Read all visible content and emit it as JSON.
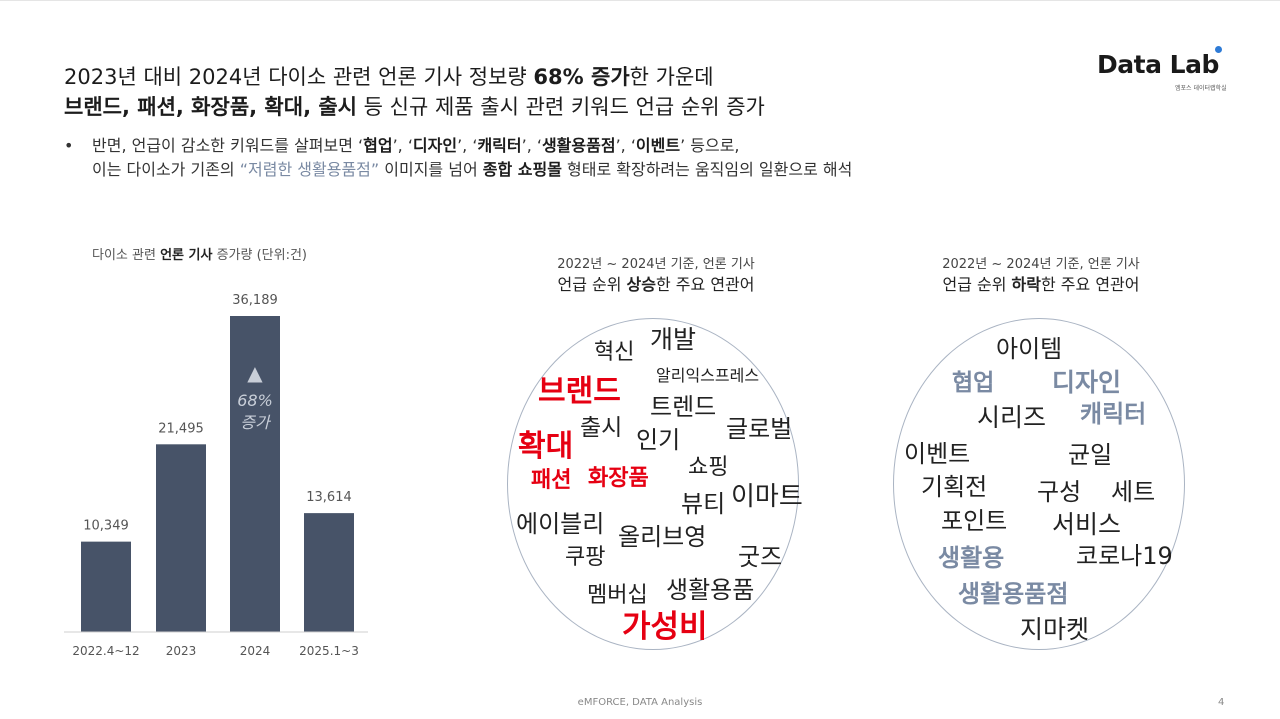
{
  "headline": {
    "line1_pre": "2023년 대비 2024년 다이소 관련 언론 기사 정보량 ",
    "line1_bold": "68% 증가",
    "line1_post": "한 가운데",
    "line2_bold": "브랜드, 패션, 화장품, 확대, 출시",
    "line2_post": " 등 신규 제품 출시 관련 키워드 언급 순위 증가"
  },
  "logo": {
    "text": "Data Lab",
    "sub": "엠포스 데이터랩학실"
  },
  "bullet": {
    "marker": "•",
    "l1_a": "반면, 언급이 감소한 키워드를 살펴보면 ‘",
    "k1": "협업",
    "s1": "’, ‘",
    "k2": "디자인",
    "s2": "’, ‘",
    "k3": "캐릭터",
    "s3": "’, ‘",
    "k4": "생활용품점",
    "s4": "’, ‘",
    "k5": "이벤트",
    "l1_end": "’ 등으로,",
    "l2_a": "이는 다이소가 기존의 ",
    "l2_quote": "“저렴한 생활용품점”",
    "l2_b": " 이미지를 넘어 ",
    "l2_bold": "종합 쇼핑몰",
    "l2_c": " 형태로 확장하려는 움직임의 일환으로 해석"
  },
  "chart_title": {
    "pre": "다이소 관련 ",
    "bold": "언론 기사",
    "post": " 증가량 (단위:건)"
  },
  "chart_data": {
    "type": "bar",
    "title": "다이소 관련 언론 기사 증가량 (단위:건)",
    "categories": [
      "2022.4~12",
      "2023",
      "2024",
      "2025.1~3"
    ],
    "values": [
      10349,
      21495,
      36189,
      13614
    ],
    "value_labels": [
      "10,349",
      "21,495",
      "36,189",
      "13,614"
    ],
    "annotation": {
      "category": "2024",
      "marker": "▲",
      "line1": "68%",
      "line2": "증가"
    },
    "ylim": [
      0,
      36189
    ],
    "bar_color": "#475368",
    "grid": false
  },
  "cloud_rising": {
    "title_line1": "2022년 ~ 2024년 기준, 언론 기사",
    "title_pre": "언급 순위 ",
    "title_bold": "상승",
    "title_post": "한 주요 연관어",
    "words": [
      "혁신",
      "개발",
      "알리익스프레스",
      "브랜드",
      "트렌드",
      "출시",
      "글로벌",
      "인기",
      "확대",
      "쇼핑",
      "패션",
      "화장품",
      "뷰티",
      "이마트",
      "에이블리",
      "올리브영",
      "쿠팡",
      "굿즈",
      "멤버십",
      "생활용품",
      "가성비"
    ],
    "highlight_color": "#e60012"
  },
  "cloud_falling": {
    "title_line1": "2022년 ~ 2024년 기준, 언론 기사",
    "title_pre": "언급 순위 ",
    "title_bold": "하락",
    "title_post": "한 주요 연관어",
    "words": [
      "아이템",
      "협업",
      "디자인",
      "시리즈",
      "캐릭터",
      "이벤트",
      "균일",
      "기획전",
      "구성",
      "세트",
      "포인트",
      "서비스",
      "생활용",
      "코로나19",
      "생활용품점",
      "지마켓"
    ],
    "highlight_color": "#7a8aa3"
  },
  "footer": "eMFORCE, DATA Analysis",
  "page_number": "4"
}
